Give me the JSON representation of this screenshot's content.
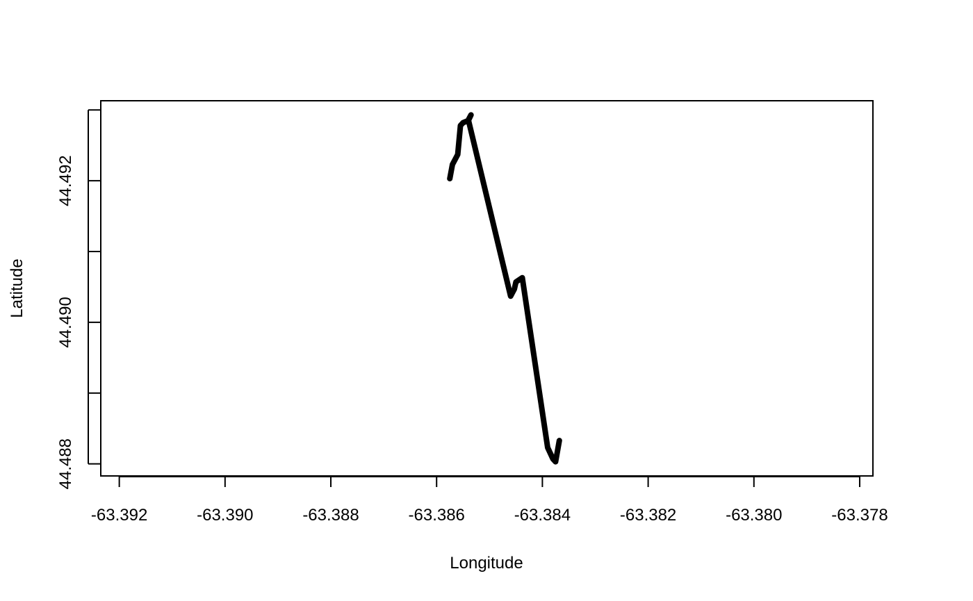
{
  "chart_data": {
    "type": "line",
    "title": "",
    "xlabel": "Longitude",
    "ylabel": "Latitude",
    "xlim": [
      -63.39235,
      -63.37775
    ],
    "ylim": [
      44.48783,
      44.49313
    ],
    "grid": false,
    "x_ticks": [
      -63.392,
      -63.39,
      -63.388,
      -63.386,
      -63.384,
      -63.382,
      -63.38,
      -63.378
    ],
    "x_tick_labels": [
      "-63.392",
      "-63.390",
      "-63.388",
      "-63.386",
      "-63.384",
      "-63.382",
      "-63.380",
      "-63.378"
    ],
    "y_ticks": [
      44.488,
      44.489,
      44.49,
      44.491,
      44.492,
      44.493
    ],
    "y_tick_labels": [
      "44.488",
      "",
      "44.490",
      "",
      "44.492",
      ""
    ],
    "series": [
      {
        "color": "#000000",
        "x": [
          -63.38575,
          -63.3857,
          -63.3856,
          -63.38555,
          -63.3855,
          -63.3854,
          -63.38535,
          -63.3854,
          -63.3846,
          -63.38453,
          -63.3845,
          -63.38438,
          -63.3839,
          -63.3838,
          -63.38375,
          -63.38368
        ],
        "y": [
          44.49203,
          44.49223,
          44.49237,
          44.49278,
          44.49282,
          44.49285,
          44.49293,
          44.49286,
          44.49037,
          44.49047,
          44.49057,
          44.49063,
          44.48823,
          44.48807,
          44.48803,
          44.48833
        ]
      }
    ]
  }
}
